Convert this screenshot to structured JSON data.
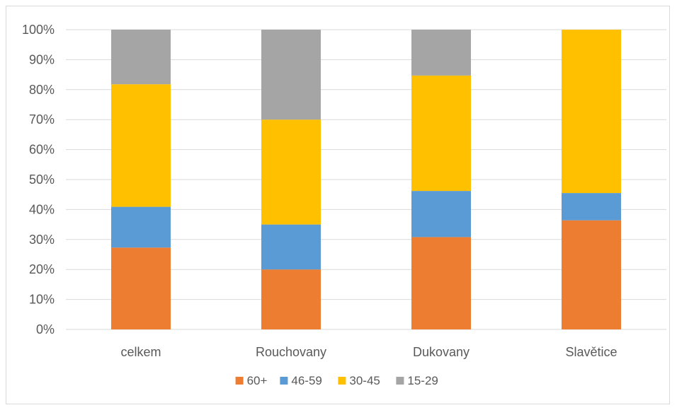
{
  "chart_data": {
    "type": "bar",
    "stacked": true,
    "percent": true,
    "categories": [
      "celkem",
      "Rouchovany",
      "Dukovany",
      "Slavětice"
    ],
    "series": [
      {
        "name": "60+",
        "color": "#ed7d31",
        "values": [
          27.3,
          20.0,
          30.8,
          36.4
        ]
      },
      {
        "name": "46-59",
        "color": "#5b9bd5",
        "values": [
          13.6,
          15.0,
          15.4,
          9.1
        ]
      },
      {
        "name": "30-45",
        "color": "#ffc000",
        "values": [
          40.9,
          35.0,
          38.5,
          54.5
        ]
      },
      {
        "name": "15-29",
        "color": "#a5a5a5",
        "values": [
          18.2,
          30.0,
          15.3,
          0.0
        ]
      }
    ],
    "ylim": [
      0,
      100
    ],
    "yticks": [
      "0%",
      "10%",
      "20%",
      "30%",
      "40%",
      "50%",
      "60%",
      "70%",
      "80%",
      "90%",
      "100%"
    ],
    "grid": true,
    "legend_position": "bottom",
    "title": "",
    "xlabel": "",
    "ylabel": ""
  }
}
